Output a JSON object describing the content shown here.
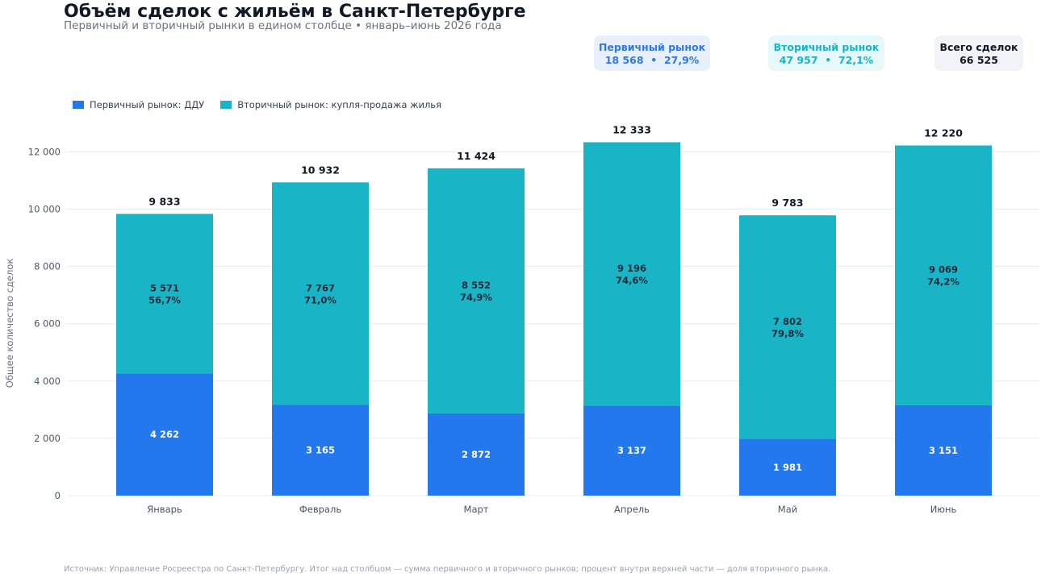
{
  "header": {
    "title": "Объём сделок с жильём в Санкт-Петербурге",
    "subtitle": "Первичный и вторичный рынки в едином столбце • январь–июнь 2026 года"
  },
  "cards": {
    "primary": {
      "label": "Первичный рынок",
      "value": "18 568  •  27,9%"
    },
    "secondary": {
      "label": "Вторичный рынок",
      "value": "47 957  •  72,1%"
    },
    "total": {
      "label": "Всего сделок",
      "value": "66 525"
    }
  },
  "legend": {
    "primary": "Первичный рынок: ДДУ",
    "secondary": "Вторичный рынок: купля-продажа жилья"
  },
  "footer": "Источник: Управление Росреестра по Санкт-Петербургу. Итог над столбцом — сумма первичного и вторичного рынков; процент внутри верхней части — доля вторичного рынка.",
  "colors": {
    "primary": "#2478ee",
    "secondary": "#19b5c6",
    "grid": "#ececf0"
  },
  "chart_data": {
    "type": "bar",
    "stacked": true,
    "categories": [
      "Январь",
      "Февраль",
      "Март",
      "Апрель",
      "Май",
      "Июнь"
    ],
    "series": [
      {
        "name": "Первичный рынок: ДДУ",
        "values": [
          4262,
          3165,
          2872,
          3137,
          1981,
          3151
        ],
        "labels": [
          "4 262",
          "3 165",
          "2 872",
          "3 137",
          "1 981",
          "3 151"
        ]
      },
      {
        "name": "Вторичный рынок: купля-продажа жилья",
        "values": [
          5571,
          7767,
          8552,
          9196,
          7802,
          9069
        ],
        "labels": [
          "5 571",
          "7 767",
          "8 552",
          "9 196",
          "7 802",
          "9 069"
        ],
        "shares": [
          "56,7%",
          "71,0%",
          "74,9%",
          "74,6%",
          "79,8%",
          "74,2%"
        ]
      }
    ],
    "totals": [
      9833,
      10932,
      11424,
      12333,
      9783,
      12220
    ],
    "total_labels": [
      "9 833",
      "10 932",
      "11 424",
      "12 333",
      "9 783",
      "12 220"
    ],
    "ylabel": "Общее количество сделок",
    "ylim": [
      0,
      12600
    ],
    "yticks": [
      0,
      2000,
      4000,
      6000,
      8000,
      10000,
      12000
    ],
    "ytick_labels": [
      "0",
      "2 000",
      "4 000",
      "6 000",
      "8 000",
      "10 000",
      "12 000"
    ],
    "grid": true,
    "legend_position": "top-left"
  }
}
